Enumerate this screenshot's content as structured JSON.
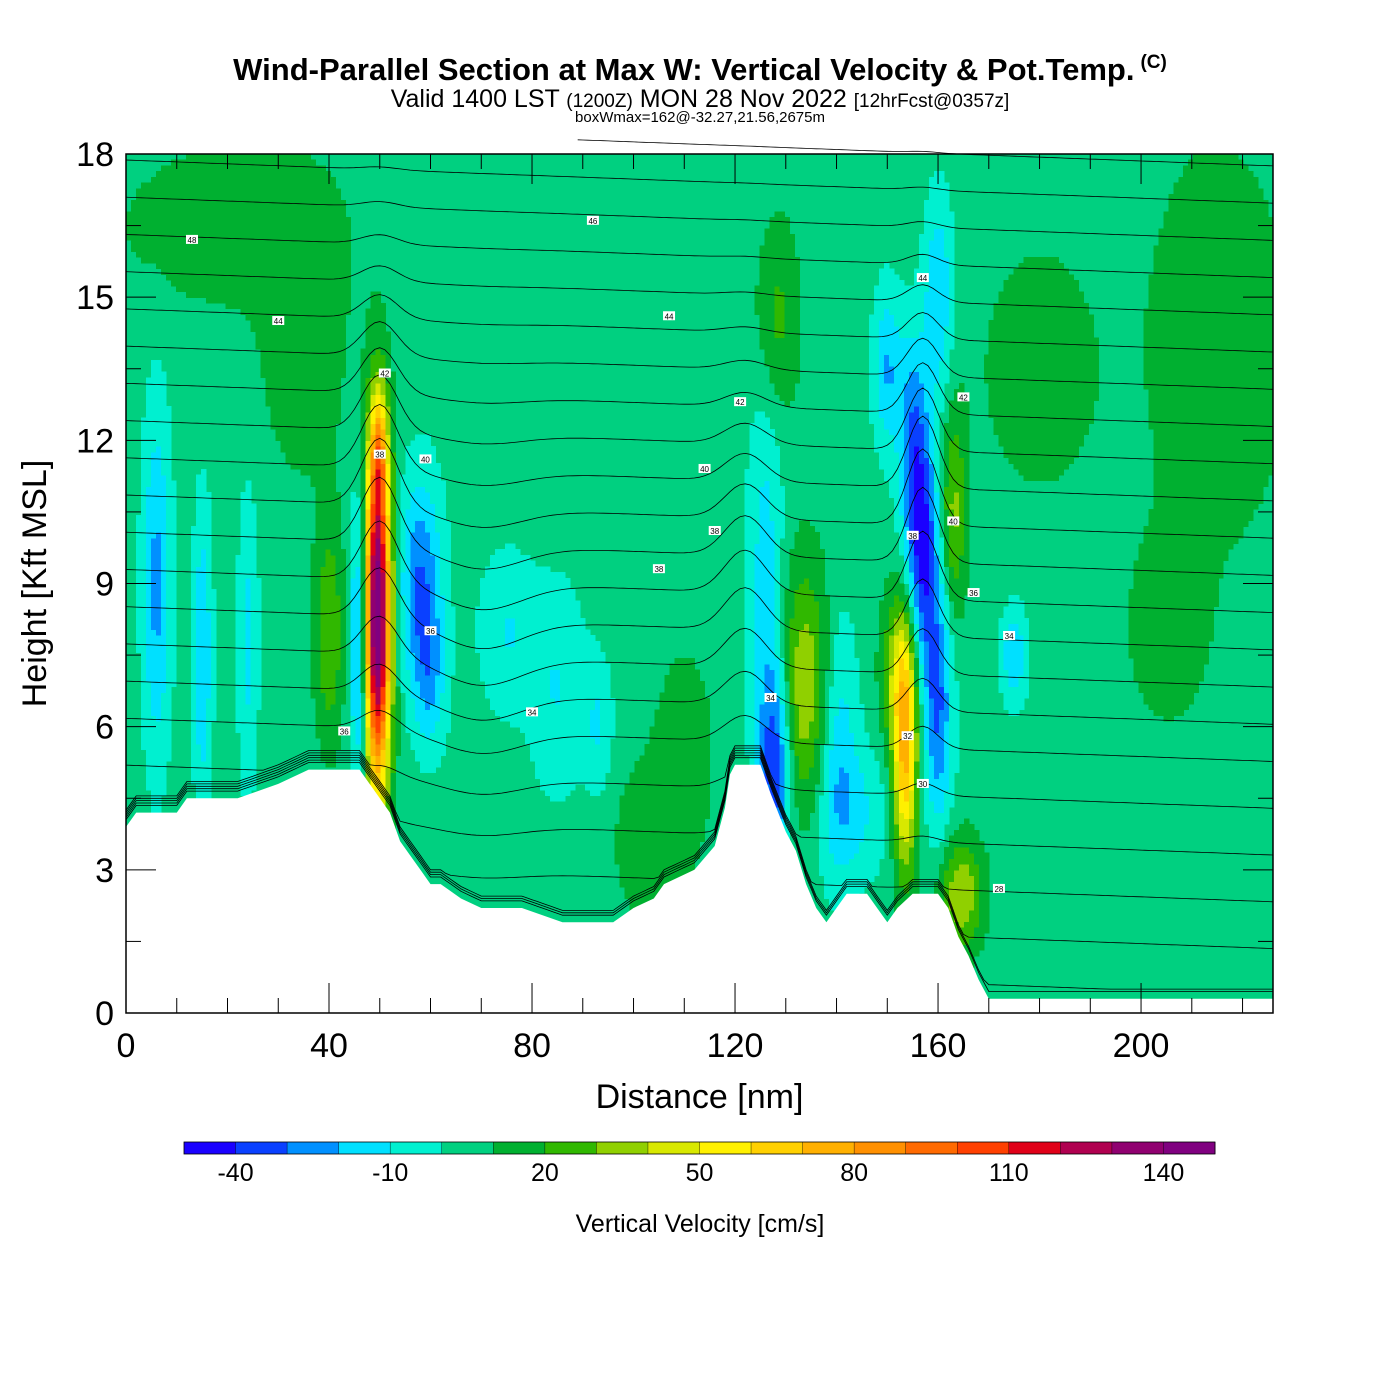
{
  "header": {
    "title": "Wind-Parallel Section at Max W: Vertical Velocity & Pot.Temp.",
    "copyright": "(C)",
    "valid_prefix": "Valid 1400 LST",
    "valid_utc": "(1200Z)",
    "valid_date": "MON 28 Nov 2022",
    "forecast": "[12hrFcst@0357z]",
    "box_info": "boxWmax=162@-32.27,21.56,2675m"
  },
  "chart_data": {
    "type": "heatmap",
    "xlabel": "Distance [nm]",
    "ylabel": "Height [Kft MSL]",
    "xlim": [
      0,
      226
    ],
    "ylim": [
      0,
      18
    ],
    "x_ticks": [
      "0",
      "40",
      "80",
      "120",
      "160",
      "200"
    ],
    "y_ticks": [
      "0",
      "3",
      "6",
      "9",
      "12",
      "15",
      "18"
    ],
    "colorbar": {
      "title": "Vertical Velocity [cm/s]",
      "labels": [
        "-40",
        "-10",
        "20",
        "50",
        "80",
        "110",
        "140"
      ],
      "range": [
        -50,
        150
      ],
      "colors": [
        "#1a00ff",
        "#0a40ff",
        "#0090ff",
        "#00e0ff",
        "#00f0d0",
        "#00d080",
        "#00b030",
        "#30b800",
        "#90d000",
        "#d8e800",
        "#fff000",
        "#ffd000",
        "#ffb000",
        "#ff9000",
        "#ff6a00",
        "#ff4000",
        "#e00018",
        "#b00050",
        "#900070",
        "#800080"
      ]
    },
    "background_velocity": 5,
    "velocity_features": [
      {
        "x": 49.5,
        "y": 8.3,
        "sx": 1.8,
        "sy": 2.5,
        "w": 150
      },
      {
        "x": 49.8,
        "y": 11.8,
        "sx": 1.2,
        "sy": 0.9,
        "w": 40
      },
      {
        "x": 46.0,
        "y": 7.8,
        "sx": 1.3,
        "sy": 2.2,
        "w": -40
      },
      {
        "x": 58.0,
        "y": 9.0,
        "sx": 3.0,
        "sy": 1.6,
        "w": -35
      },
      {
        "x": 60.0,
        "y": 7.0,
        "sx": 2.2,
        "sy": 1.1,
        "w": -20
      },
      {
        "x": 6.0,
        "y": 9.0,
        "sx": 2.0,
        "sy": 2.6,
        "w": -28
      },
      {
        "x": 15.0,
        "y": 7.5,
        "sx": 1.3,
        "sy": 2.2,
        "w": -25
      },
      {
        "x": 24.0,
        "y": 7.8,
        "sx": 1.4,
        "sy": 2.2,
        "w": -18
      },
      {
        "x": 40.0,
        "y": 8.0,
        "sx": 2.0,
        "sy": 1.6,
        "w": 25
      },
      {
        "x": 35.0,
        "y": 14.0,
        "sx": 6.0,
        "sy": 2.0,
        "w": 12
      },
      {
        "x": 75.0,
        "y": 8.0,
        "sx": 4.0,
        "sy": 1.2,
        "w": -15
      },
      {
        "x": 85.0,
        "y": 6.8,
        "sx": 4.0,
        "sy": 1.6,
        "w": -15
      },
      {
        "x": 93.0,
        "y": 6.0,
        "sx": 2.0,
        "sy": 1.0,
        "w": -15
      },
      {
        "x": 110.0,
        "y": 5.5,
        "sx": 4.0,
        "sy": 1.5,
        "w": 12
      },
      {
        "x": 103.0,
        "y": 3.6,
        "sx": 5.0,
        "sy": 1.2,
        "w": 12
      },
      {
        "x": 128.0,
        "y": 5.2,
        "sx": 2.2,
        "sy": 1.6,
        "w": -40
      },
      {
        "x": 126.0,
        "y": 9.0,
        "sx": 2.5,
        "sy": 3.5,
        "w": -20
      },
      {
        "x": 134.0,
        "y": 6.8,
        "sx": 4.0,
        "sy": 1.8,
        "w": 35
      },
      {
        "x": 140.0,
        "y": 5.8,
        "sx": 2.8,
        "sy": 2.0,
        "w": -25
      },
      {
        "x": 144.0,
        "y": 4.2,
        "sx": 5.0,
        "sy": 1.0,
        "w": -15
      },
      {
        "x": 153.5,
        "y": 5.4,
        "sx": 1.7,
        "sy": 1.7,
        "w": 65
      },
      {
        "x": 152.5,
        "y": 7.2,
        "sx": 2.5,
        "sy": 1.2,
        "w": 30
      },
      {
        "x": 157.0,
        "y": 9.6,
        "sx": 2.2,
        "sy": 1.8,
        "w": -45
      },
      {
        "x": 160.0,
        "y": 6.4,
        "sx": 2.0,
        "sy": 1.8,
        "w": -35
      },
      {
        "x": 155.0,
        "y": 12.0,
        "sx": 2.0,
        "sy": 1.6,
        "w": -30
      },
      {
        "x": 150.0,
        "y": 13.5,
        "sx": 2.0,
        "sy": 1.2,
        "w": -25
      },
      {
        "x": 163.0,
        "y": 10.5,
        "sx": 1.8,
        "sy": 1.5,
        "w": 28
      },
      {
        "x": 160.0,
        "y": 15.0,
        "sx": 2.0,
        "sy": 1.5,
        "w": -25
      },
      {
        "x": 164.5,
        "y": 2.5,
        "sx": 3.0,
        "sy": 0.8,
        "w": 35
      },
      {
        "x": 175.0,
        "y": 7.5,
        "sx": 1.8,
        "sy": 0.7,
        "w": -25
      },
      {
        "x": 128.0,
        "y": 14.5,
        "sx": 3.0,
        "sy": 1.5,
        "w": 20
      },
      {
        "x": 180.0,
        "y": 13.5,
        "sx": 8.0,
        "sy": 1.8,
        "w": 12
      },
      {
        "x": 215.0,
        "y": 14.0,
        "sx": 10.0,
        "sy": 3.0,
        "w": 13
      },
      {
        "x": 20.0,
        "y": 16.5,
        "sx": 15.0,
        "sy": 1.2,
        "w": 12
      },
      {
        "x": 205.0,
        "y": 8.0,
        "sx": 6.0,
        "sy": 1.5,
        "w": 10
      }
    ],
    "terrain_kft": [
      [
        0,
        3.9
      ],
      [
        2,
        4.2
      ],
      [
        4,
        4.2
      ],
      [
        10,
        4.2
      ],
      [
        12,
        4.5
      ],
      [
        18,
        4.5
      ],
      [
        22,
        4.5
      ],
      [
        30,
        4.8
      ],
      [
        36,
        5.1
      ],
      [
        42,
        5.1
      ],
      [
        46,
        5.1
      ],
      [
        48,
        4.8
      ],
      [
        50,
        4.5
      ],
      [
        52,
        4.2
      ],
      [
        54,
        3.6
      ],
      [
        56,
        3.3
      ],
      [
        58,
        3.0
      ],
      [
        60,
        2.7
      ],
      [
        62,
        2.7
      ],
      [
        66,
        2.4
      ],
      [
        70,
        2.2
      ],
      [
        78,
        2.2
      ],
      [
        86,
        1.9
      ],
      [
        96,
        1.9
      ],
      [
        100,
        2.2
      ],
      [
        104,
        2.4
      ],
      [
        106,
        2.7
      ],
      [
        112,
        3.0
      ],
      [
        116,
        3.5
      ],
      [
        118,
        4.3
      ],
      [
        119,
        5.0
      ],
      [
        120,
        5.2
      ],
      [
        125,
        5.2
      ],
      [
        127,
        4.6
      ],
      [
        130,
        3.8
      ],
      [
        132,
        3.4
      ],
      [
        134,
        2.7
      ],
      [
        136,
        2.2
      ],
      [
        138,
        1.9
      ],
      [
        140,
        2.2
      ],
      [
        142,
        2.5
      ],
      [
        146,
        2.5
      ],
      [
        148,
        2.2
      ],
      [
        150,
        1.9
      ],
      [
        152,
        2.2
      ],
      [
        155,
        2.5
      ],
      [
        160,
        2.5
      ],
      [
        162,
        2.2
      ],
      [
        164,
        1.6
      ],
      [
        166,
        1.2
      ],
      [
        168,
        0.7
      ],
      [
        170,
        0.3
      ],
      [
        172,
        0.3
      ],
      [
        226,
        0.3
      ]
    ],
    "theta_levels": [
      26,
      27,
      28,
      29,
      30,
      31,
      32,
      33,
      34,
      35,
      36,
      37,
      38,
      39,
      40,
      41,
      42,
      43,
      44,
      45,
      46,
      47,
      48,
      49
    ],
    "contour_labels": [
      {
        "text": "48",
        "x": 13,
        "y": 16.2
      },
      {
        "text": "46",
        "x": 92,
        "y": 16.6
      },
      {
        "text": "44",
        "x": 30,
        "y": 14.5
      },
      {
        "text": "44",
        "x": 107,
        "y": 14.6
      },
      {
        "text": "44",
        "x": 157,
        "y": 15.4
      },
      {
        "text": "42",
        "x": 51,
        "y": 13.4
      },
      {
        "text": "42",
        "x": 165,
        "y": 12.9
      },
      {
        "text": "42",
        "x": 121,
        "y": 12.8
      },
      {
        "text": "40",
        "x": 59,
        "y": 11.6
      },
      {
        "text": "40",
        "x": 114,
        "y": 11.4
      },
      {
        "text": "40",
        "x": 163,
        "y": 10.3
      },
      {
        "text": "38",
        "x": 50,
        "y": 11.7
      },
      {
        "text": "38",
        "x": 116,
        "y": 10.1
      },
      {
        "text": "38",
        "x": 105,
        "y": 9.3
      },
      {
        "text": "38",
        "x": 155,
        "y": 10.0
      },
      {
        "text": "36",
        "x": 60,
        "y": 8.0
      },
      {
        "text": "36",
        "x": 167,
        "y": 8.8
      },
      {
        "text": "34",
        "x": 80,
        "y": 6.3
      },
      {
        "text": "34",
        "x": 127,
        "y": 6.6
      },
      {
        "text": "34",
        "x": 174,
        "y": 7.9
      },
      {
        "text": "36",
        "x": 43,
        "y": 5.9
      },
      {
        "text": "32",
        "x": 154,
        "y": 5.8
      },
      {
        "text": "30",
        "x": 157,
        "y": 4.8
      },
      {
        "text": "28",
        "x": 172,
        "y": 2.6
      }
    ]
  }
}
